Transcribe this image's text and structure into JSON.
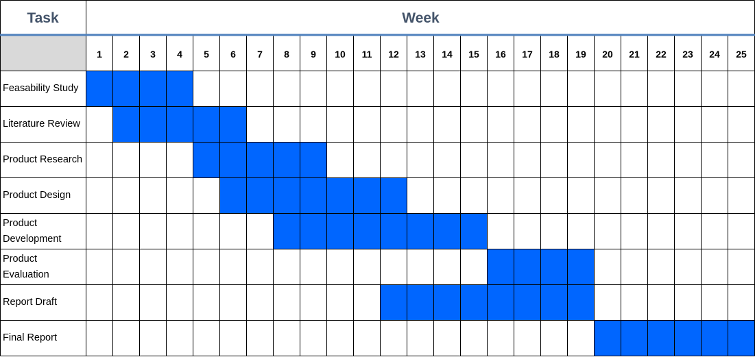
{
  "header": {
    "task_title": "Task",
    "week_title": "Week"
  },
  "colors": {
    "bar": "#0066ff",
    "header_rule": "#4f81bd",
    "header_text": "#44546a",
    "corner_fill": "#d9d9d9",
    "grid": "#000000"
  },
  "chart_data": {
    "type": "gantt",
    "x_axis_label": "Week",
    "y_axis_label": "Task",
    "weeks": [
      "1",
      "2",
      "3",
      "4",
      "5",
      "6",
      "7",
      "8",
      "9",
      "10",
      "11",
      "12",
      "13",
      "14",
      "15",
      "16",
      "17",
      "18",
      "19",
      "20",
      "21",
      "22",
      "23",
      "24",
      "25"
    ],
    "tasks": [
      {
        "name": "Feasability Study",
        "start_week": 1,
        "end_week": 4
      },
      {
        "name": "Literature Review",
        "start_week": 2,
        "end_week": 6
      },
      {
        "name": "Product Research",
        "start_week": 5,
        "end_week": 9
      },
      {
        "name": "Product Design",
        "start_week": 6,
        "end_week": 12
      },
      {
        "name": "Product Development",
        "start_week": 8,
        "end_week": 15
      },
      {
        "name": "Product Evaluation",
        "start_week": 16,
        "end_week": 19
      },
      {
        "name": "Report Draft",
        "start_week": 12,
        "end_week": 19
      },
      {
        "name": "Final Report",
        "start_week": 20,
        "end_week": 25
      }
    ]
  }
}
